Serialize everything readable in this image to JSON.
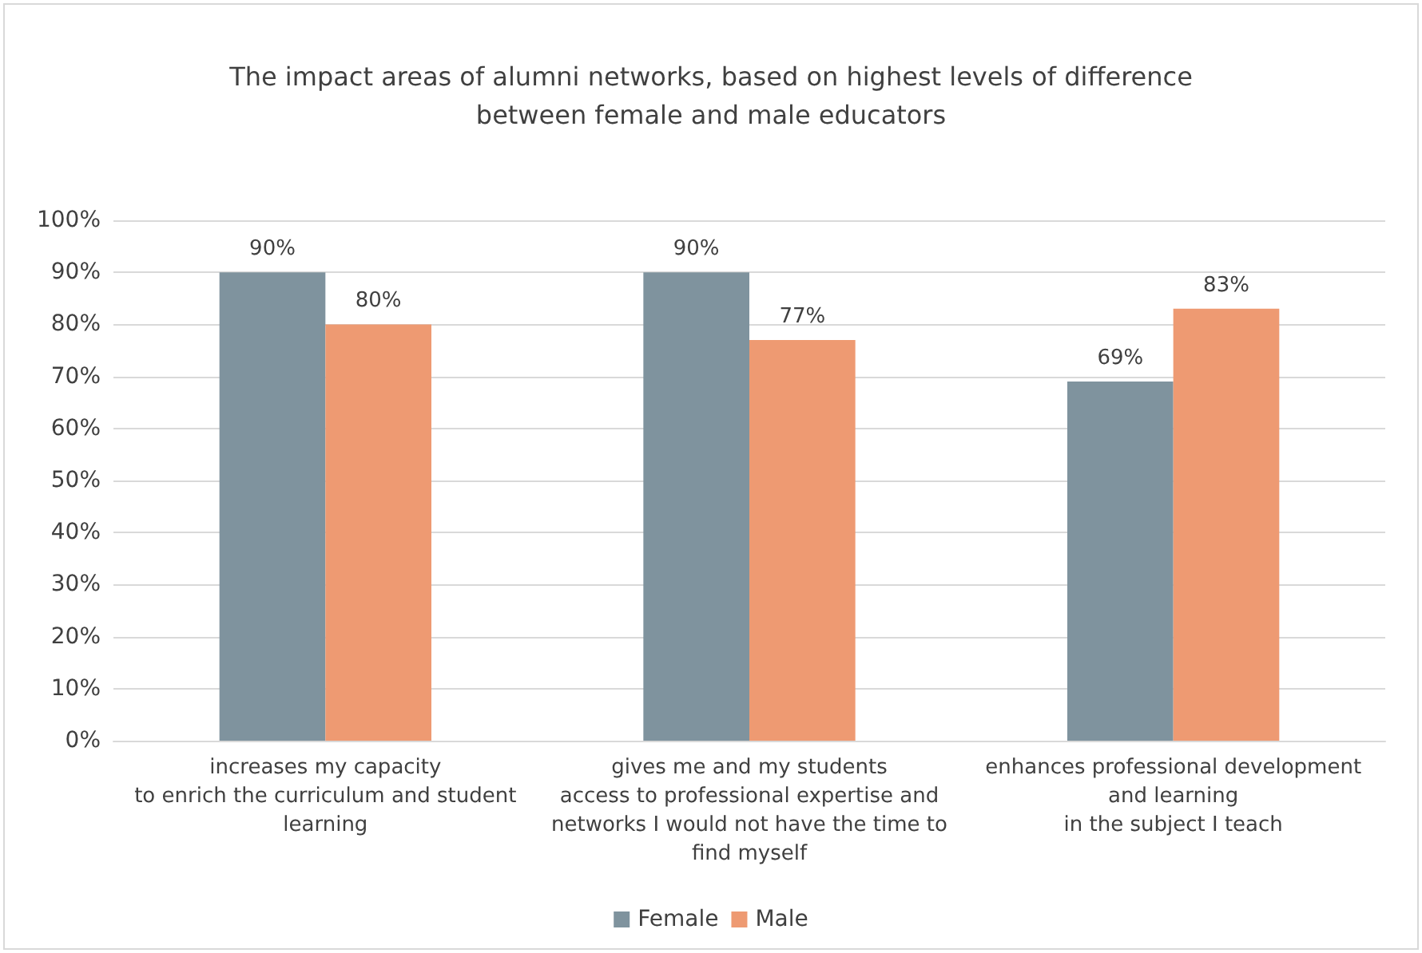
{
  "chart_data": {
    "type": "bar",
    "title": "The impact areas of alumni networks, based on highest levels of difference\nbetween female and male educators",
    "categories": [
      "increases my capacity\nto enrich the curriculum and student\nlearning",
      "gives me and my students\naccess to professional expertise and\nnetworks I would not have the time to\nfind myself",
      "enhances professional development\nand learning\nin the subject I teach"
    ],
    "series": [
      {
        "name": "Female",
        "color": "#7f939e",
        "values": [
          90,
          90,
          69
        ],
        "value_labels": [
          "90%",
          "90%",
          "69%"
        ]
      },
      {
        "name": "Male",
        "color": "#ee9a72",
        "values": [
          80,
          77,
          83
        ],
        "value_labels": [
          "80%",
          "77%",
          "83%"
        ]
      }
    ],
    "ylim": [
      0,
      100
    ],
    "yticks": [
      {
        "value": 0,
        "label": "0%"
      },
      {
        "value": 10,
        "label": "10%"
      },
      {
        "value": 20,
        "label": "20%"
      },
      {
        "value": 30,
        "label": "30%"
      },
      {
        "value": 40,
        "label": "40%"
      },
      {
        "value": 50,
        "label": "50%"
      },
      {
        "value": 60,
        "label": "60%"
      },
      {
        "value": 70,
        "label": "70%"
      },
      {
        "value": 80,
        "label": "80%"
      },
      {
        "value": 90,
        "label": "90%"
      },
      {
        "value": 100,
        "label": "100%"
      }
    ],
    "grid": "y",
    "legend": "bottom"
  }
}
